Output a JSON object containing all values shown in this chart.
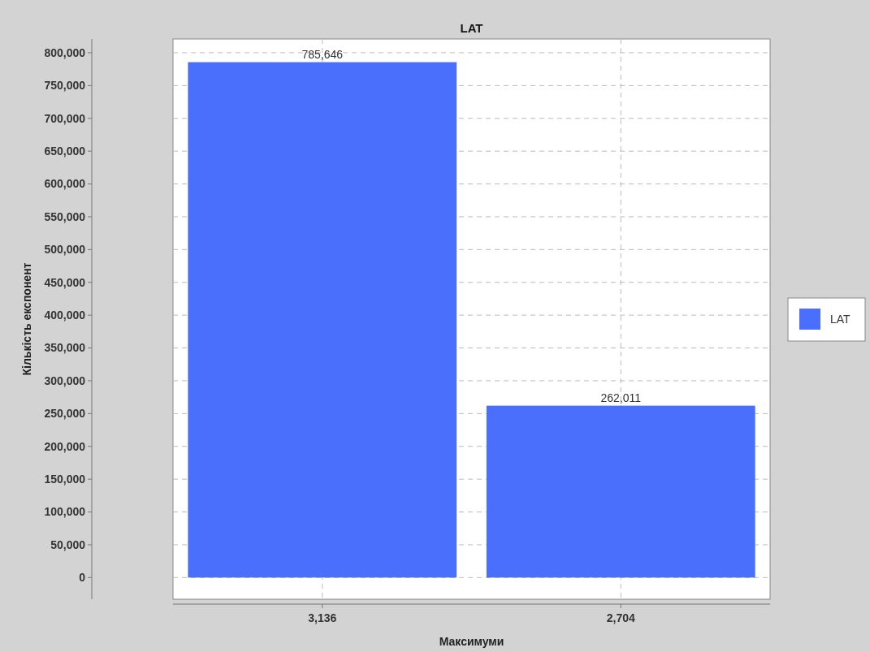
{
  "chart_data": {
    "type": "bar",
    "title": "LAT",
    "xlabel": "Максимуми",
    "ylabel": "Кількість експонент",
    "categories": [
      "3,136",
      "2,704"
    ],
    "series": [
      {
        "name": "LAT",
        "color": "#4a6ffc",
        "values": [
          785646,
          262011
        ],
        "value_labels": [
          "785,646",
          "262,011"
        ]
      }
    ],
    "ylim": [
      -33000,
      821000
    ],
    "yticks": [
      {
        "value": 0,
        "label": "0"
      },
      {
        "value": 50000,
        "label": "50,000"
      },
      {
        "value": 100000,
        "label": "100,000"
      },
      {
        "value": 150000,
        "label": "150,000"
      },
      {
        "value": 200000,
        "label": "200,000"
      },
      {
        "value": 250000,
        "label": "250,000"
      },
      {
        "value": 300000,
        "label": "300,000"
      },
      {
        "value": 350000,
        "label": "350,000"
      },
      {
        "value": 400000,
        "label": "400,000"
      },
      {
        "value": 450000,
        "label": "450,000"
      },
      {
        "value": 500000,
        "label": "500,000"
      },
      {
        "value": 550000,
        "label": "550,000"
      },
      {
        "value": 600000,
        "label": "600,000"
      },
      {
        "value": 650000,
        "label": "650,000"
      },
      {
        "value": 700000,
        "label": "700,000"
      },
      {
        "value": 750000,
        "label": "750,000"
      },
      {
        "value": 800000,
        "label": "800,000"
      }
    ],
    "grid": true,
    "legend": "right"
  }
}
